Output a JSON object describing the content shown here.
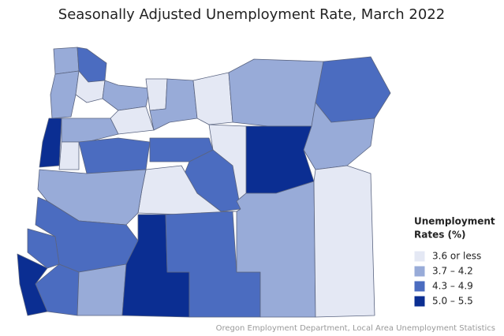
{
  "title": "Seasonally Adjusted Unemployment Rate, March 2022",
  "legend": {
    "title_lines": [
      "Unemployment",
      "Rates (%)"
    ],
    "items": [
      {
        "label": "3.6 or less",
        "color": "#e4e8f4"
      },
      {
        "label": "3.7 – 4.2",
        "color": "#98abd8"
      },
      {
        "label": "4.3 – 4.9",
        "color": "#4b6cc0"
      },
      {
        "label": "5.0 – 5.5",
        "color": "#0b2e92"
      }
    ]
  },
  "source": "Oregon Employment Department, Local Area Unemployment Statistics"
}
